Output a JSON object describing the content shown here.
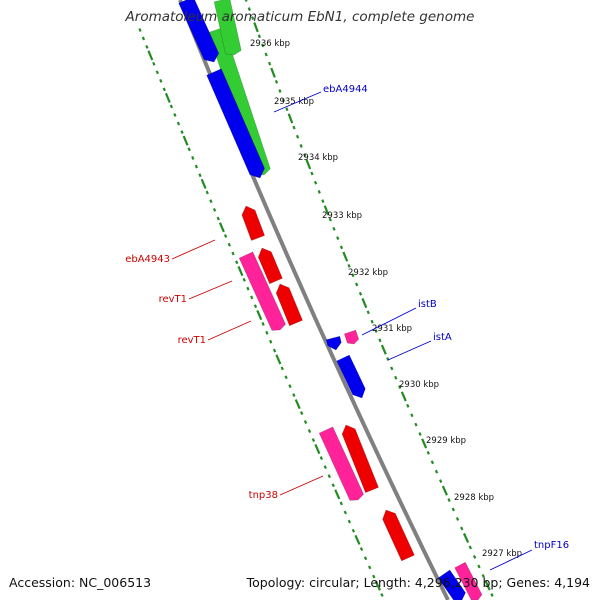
{
  "title": "Aromatoleum aromaticum EbN1, complete genome",
  "footer": {
    "accession": "Accession: NC_006513",
    "summary": "Topology: circular; Length: 4,296,230 bp; Genes: 4,194"
  },
  "colors": {
    "backbone": "#808080",
    "ticks": "#228B22",
    "forward_label": "#0000CC",
    "reverse_label": "#CC0000",
    "blue_gene": "#0000EE",
    "green_gene": "#33CC33",
    "red_gene": "#EE0000",
    "pink_gene": "#FF2299"
  },
  "kbp_labels": [
    {
      "kbp": 2936,
      "text": "2936 kbp"
    },
    {
      "kbp": 2935,
      "text": "2935 kbp"
    },
    {
      "kbp": 2934,
      "text": "2934 kbp"
    },
    {
      "kbp": 2933,
      "text": "2933 kbp"
    },
    {
      "kbp": 2932,
      "text": "2932 kbp"
    },
    {
      "kbp": 2931,
      "text": "2931 kbp"
    },
    {
      "kbp": 2930,
      "text": "2930 kbp"
    },
    {
      "kbp": 2929,
      "text": "2929 kbp"
    },
    {
      "kbp": 2928,
      "text": "2928 kbp"
    },
    {
      "kbp": 2927,
      "text": "2927 kbp"
    }
  ],
  "gene_labels": [
    {
      "text": "ebA4944",
      "strand": "forward"
    },
    {
      "text": "istB",
      "strand": "forward"
    },
    {
      "text": "istA",
      "strand": "forward"
    },
    {
      "text": "tnpF16",
      "strand": "forward"
    },
    {
      "text": "ebA4943",
      "strand": "reverse"
    },
    {
      "text": "revT1",
      "strand": "reverse"
    },
    {
      "text": "revT1",
      "strand": "reverse"
    },
    {
      "text": "tnp38",
      "strand": "reverse"
    }
  ]
}
